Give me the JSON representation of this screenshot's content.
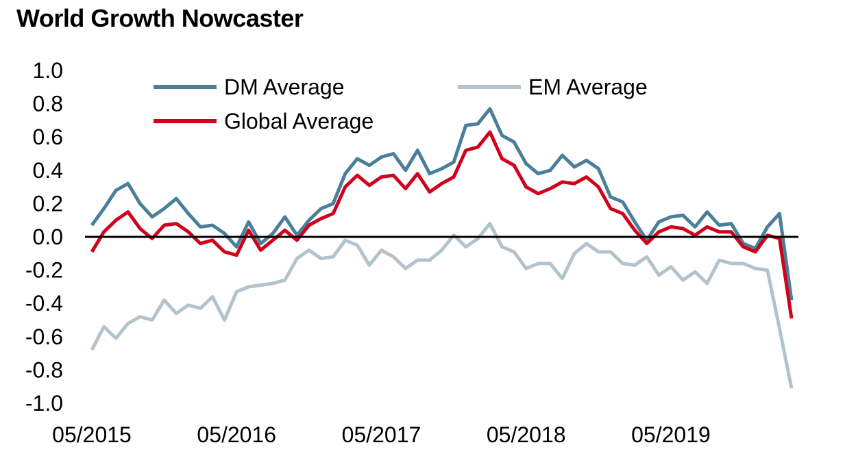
{
  "chart_data": {
    "type": "line",
    "title": "World Growth Nowcaster",
    "xlabel": "",
    "ylabel": "",
    "ylim": [
      -1.0,
      1.0
    ],
    "yticks": [
      "1.0",
      "0.8",
      "0.6",
      "0.4",
      "0.2",
      "0.0",
      "-0.2",
      "-0.4",
      "-0.6",
      "-0.8",
      "-1.0"
    ],
    "ytick_values": [
      1.0,
      0.8,
      0.6,
      0.4,
      0.2,
      0.0,
      -0.2,
      -0.4,
      -0.6,
      -0.8,
      -1.0
    ],
    "xticks": [
      "05/2015",
      "05/2016",
      "05/2017",
      "05/2018",
      "05/2019"
    ],
    "xtick_index": [
      0,
      12,
      24,
      36,
      48
    ],
    "x_count": 59,
    "zero_line": true,
    "legend_position": "top",
    "series": [
      {
        "name": "DM Average",
        "color": "#4a7f9b",
        "values": [
          0.07,
          0.17,
          0.28,
          0.32,
          0.2,
          0.12,
          0.17,
          0.23,
          0.14,
          0.06,
          0.07,
          0.02,
          -0.06,
          0.09,
          -0.04,
          0.02,
          0.12,
          0.01,
          0.1,
          0.17,
          0.2,
          0.38,
          0.47,
          0.43,
          0.48,
          0.5,
          0.4,
          0.52,
          0.38,
          0.41,
          0.45,
          0.67,
          0.68,
          0.77,
          0.61,
          0.57,
          0.44,
          0.38,
          0.4,
          0.49,
          0.42,
          0.46,
          0.41,
          0.24,
          0.21,
          0.09,
          -0.02,
          0.09,
          0.12,
          0.13,
          0.06,
          0.15,
          0.07,
          0.08,
          -0.04,
          -0.07,
          0.06,
          0.14,
          -0.38
        ],
        "label": ""
      },
      {
        "name": "EM Average",
        "color": "#b3c3cc",
        "values": [
          -0.68,
          -0.54,
          -0.61,
          -0.52,
          -0.48,
          -0.5,
          -0.38,
          -0.46,
          -0.41,
          -0.43,
          -0.36,
          -0.5,
          -0.33,
          -0.3,
          -0.29,
          -0.28,
          -0.26,
          -0.13,
          -0.08,
          -0.13,
          -0.12,
          -0.02,
          -0.05,
          -0.17,
          -0.08,
          -0.12,
          -0.19,
          -0.14,
          -0.14,
          -0.08,
          0.01,
          -0.06,
          -0.01,
          0.08,
          -0.06,
          -0.09,
          -0.19,
          -0.16,
          -0.16,
          -0.25,
          -0.1,
          -0.04,
          -0.09,
          -0.09,
          -0.16,
          -0.17,
          -0.12,
          -0.23,
          -0.18,
          -0.26,
          -0.21,
          -0.28,
          -0.14,
          -0.16,
          -0.16,
          -0.19,
          -0.2,
          -0.55,
          -0.91
        ],
        "label": ""
      },
      {
        "name": "Global Average",
        "color": "#d0021b",
        "values": [
          -0.09,
          0.03,
          0.1,
          0.15,
          0.05,
          -0.01,
          0.07,
          0.08,
          0.03,
          -0.04,
          -0.02,
          -0.09,
          -0.11,
          0.04,
          -0.08,
          -0.02,
          0.04,
          -0.02,
          0.07,
          0.11,
          0.14,
          0.3,
          0.37,
          0.31,
          0.36,
          0.37,
          0.29,
          0.38,
          0.27,
          0.32,
          0.36,
          0.52,
          0.54,
          0.63,
          0.47,
          0.43,
          0.3,
          0.26,
          0.29,
          0.33,
          0.32,
          0.36,
          0.3,
          0.17,
          0.14,
          0.04,
          -0.04,
          0.03,
          0.06,
          0.05,
          0.01,
          0.06,
          0.03,
          0.03,
          -0.06,
          -0.09,
          0.01,
          -0.01,
          -0.49
        ],
        "label": ""
      }
    ]
  }
}
